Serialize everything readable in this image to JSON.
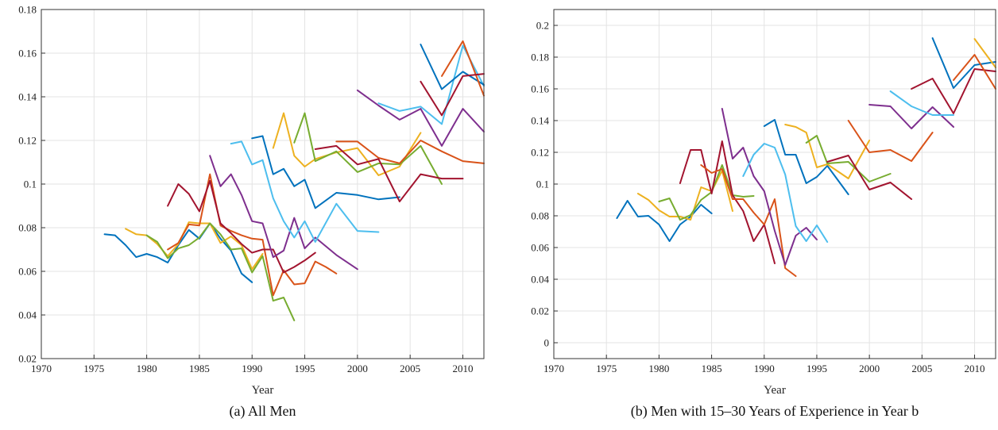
{
  "palette": [
    "#0072BD",
    "#D95319",
    "#EDB120",
    "#7E2F8E",
    "#77AC30",
    "#4DBEEE",
    "#A2142F"
  ],
  "chart_data": [
    {
      "type": "line",
      "caption": "(a) All Men",
      "xlabel": "Year",
      "ylabel": "",
      "xlim": [
        1970,
        2012
      ],
      "ylim": [
        0.02,
        0.18
      ],
      "xticks": [
        1970,
        1975,
        1980,
        1985,
        1990,
        1995,
        2000,
        2005,
        2010
      ],
      "yticks": [
        0.02,
        0.04,
        0.06,
        0.08,
        0.1,
        0.12,
        0.14,
        0.16,
        0.18
      ],
      "ytick_labels": [
        "0.02",
        "0.04",
        "0.06",
        "0.08",
        "0.1",
        "0.12",
        "0.14",
        "0.16",
        "0.18"
      ],
      "grid": true,
      "series": [
        {
          "color": "#0072BD",
          "x": [
            1976,
            1977,
            1978,
            1979,
            1980,
            1981,
            1982,
            1983,
            1984,
            1985,
            1986,
            1987,
            1988,
            1989,
            1990
          ],
          "y": [
            0.077,
            0.0765,
            0.072,
            0.0665,
            0.068,
            0.0665,
            0.064,
            0.072,
            0.079,
            0.075,
            0.082,
            0.075,
            0.0695,
            0.059,
            0.055
          ]
        },
        {
          "color": "#EDB120",
          "x": [
            1978,
            1979,
            1980,
            1981,
            1982,
            1983,
            1984,
            1985,
            1986,
            1987,
            1988,
            1989,
            1990,
            1991
          ],
          "y": [
            0.0795,
            0.077,
            0.0765,
            0.0725,
            0.067,
            0.0725,
            0.0825,
            0.082,
            0.082,
            0.073,
            0.076,
            0.072,
            0.061,
            0.068
          ]
        },
        {
          "color": "#77AC30",
          "x": [
            1980,
            1981,
            1982,
            1983,
            1984,
            1985,
            1986,
            1987,
            1988,
            1989,
            1990,
            1991,
            1992,
            1993,
            1994
          ],
          "y": [
            0.0765,
            0.0735,
            0.066,
            0.0705,
            0.072,
            0.0755,
            0.082,
            0.077,
            0.07,
            0.0705,
            0.0595,
            0.067,
            0.0465,
            0.048,
            0.0375
          ]
        },
        {
          "color": "#D95319",
          "x": [
            1982,
            1983,
            1984,
            1985,
            1986,
            1987,
            1988,
            1989,
            1990,
            1991,
            1992,
            1993,
            1994,
            1995,
            1996,
            1997,
            1998
          ],
          "y": [
            0.07,
            0.073,
            0.0815,
            0.081,
            0.1045,
            0.081,
            0.0785,
            0.0765,
            0.075,
            0.0745,
            0.049,
            0.0605,
            0.054,
            0.0545,
            0.0645,
            0.062,
            0.059
          ]
        },
        {
          "color": "#A2142F",
          "x": [
            1982,
            1983,
            1984,
            1985,
            1986,
            1987,
            1988,
            1989,
            1990,
            1991,
            1992,
            1993,
            1994,
            1995,
            1996
          ],
          "y": [
            0.09,
            0.1,
            0.0955,
            0.0875,
            0.1015,
            0.082,
            0.0775,
            0.0725,
            0.0685,
            0.07,
            0.07,
            0.0595,
            0.062,
            0.065,
            0.0685
          ]
        },
        {
          "color": "#7E2F8E",
          "x": [
            1986,
            1987,
            1988,
            1989,
            1990,
            1991,
            1992,
            1993,
            1994,
            1995,
            1996,
            1998,
            2000
          ],
          "y": [
            0.113,
            0.099,
            0.1045,
            0.095,
            0.083,
            0.082,
            0.0665,
            0.0695,
            0.0845,
            0.0705,
            0.0755,
            0.0675,
            0.061
          ]
        },
        {
          "color": "#4DBEEE",
          "x": [
            1988,
            1989,
            1990,
            1991,
            1992,
            1993,
            1994,
            1995,
            1996,
            1998,
            2000,
            2002
          ],
          "y": [
            0.1185,
            0.1195,
            0.109,
            0.111,
            0.0935,
            0.083,
            0.0755,
            0.083,
            0.0735,
            0.091,
            0.0785,
            0.078
          ]
        },
        {
          "color": "#0072BD",
          "x": [
            1990,
            1991,
            1992,
            1993,
            1994,
            1995,
            1996,
            1998,
            2000,
            2002,
            2004
          ],
          "y": [
            0.121,
            0.122,
            0.1045,
            0.107,
            0.099,
            0.102,
            0.089,
            0.096,
            0.095,
            0.093,
            0.094
          ]
        },
        {
          "color": "#EDB120",
          "x": [
            1992,
            1993,
            1994,
            1995,
            1996,
            1998,
            2000,
            2002,
            2004,
            2006
          ],
          "y": [
            0.1165,
            0.1325,
            0.113,
            0.108,
            0.1115,
            0.1145,
            0.1165,
            0.104,
            0.108,
            0.1235
          ]
        },
        {
          "color": "#77AC30",
          "x": [
            1994,
            1995,
            1996,
            1998,
            2000,
            2002,
            2004,
            2006,
            2008
          ],
          "y": [
            0.119,
            0.1325,
            0.1105,
            0.115,
            0.1055,
            0.1095,
            0.109,
            0.1175,
            0.1
          ]
        },
        {
          "color": "#D95319",
          "x": [
            1998,
            2000,
            2002,
            2004,
            2006,
            2008,
            2010,
            2012
          ],
          "y": [
            0.1195,
            0.1195,
            0.112,
            0.1095,
            0.12,
            0.115,
            0.1105,
            0.1095
          ]
        },
        {
          "color": "#A2142F",
          "x": [
            1996,
            1998,
            2000,
            2002,
            2004,
            2006,
            2008,
            2010
          ],
          "y": [
            0.116,
            0.1175,
            0.109,
            0.1115,
            0.092,
            0.1045,
            0.1025,
            0.1025
          ]
        },
        {
          "color": "#7E2F8E",
          "x": [
            2000,
            2002,
            2004,
            2006,
            2008,
            2010,
            2012
          ],
          "y": [
            0.143,
            0.136,
            0.1295,
            0.1345,
            0.1175,
            0.1345,
            0.124
          ]
        },
        {
          "color": "#4DBEEE",
          "x": [
            2002,
            2004,
            2006,
            2008,
            2010,
            2012
          ],
          "y": [
            0.137,
            0.1335,
            0.1355,
            0.1275,
            0.1635,
            0.145
          ]
        },
        {
          "color": "#0072BD",
          "x": [
            2006,
            2008,
            2010,
            2012
          ],
          "y": [
            0.164,
            0.1435,
            0.1515,
            0.1455
          ]
        },
        {
          "color": "#D95319",
          "x": [
            2008,
            2010,
            2012
          ],
          "y": [
            0.1495,
            0.1655,
            0.1405
          ]
        },
        {
          "color": "#A2142F",
          "x": [
            2006,
            2008,
            2010,
            2012
          ],
          "y": [
            0.147,
            0.1315,
            0.1495,
            0.1505
          ]
        }
      ]
    },
    {
      "type": "line",
      "caption": "(b) Men with 15–30 Years of Experience in Year b",
      "xlabel": "Year",
      "ylabel": "",
      "xlim": [
        1970,
        2012
      ],
      "ylim": [
        -0.01,
        0.21
      ],
      "xticks": [
        1970,
        1975,
        1980,
        1985,
        1990,
        1995,
        2000,
        2005,
        2010
      ],
      "yticks": [
        0,
        0.02,
        0.04,
        0.06,
        0.08,
        0.1,
        0.12,
        0.14,
        0.16,
        0.18,
        0.2
      ],
      "ytick_labels": [
        "0",
        "0.02",
        "0.04",
        "0.06",
        "0.08",
        "0.1",
        "0.12",
        "0.14",
        "0.16",
        "0.18",
        "0.2"
      ],
      "grid": true,
      "series": [
        {
          "color": "#0072BD",
          "x": [
            1976,
            1977,
            1978,
            1979,
            1980,
            1981,
            1982,
            1983,
            1984,
            1985
          ],
          "y": [
            0.0785,
            0.0895,
            0.0795,
            0.08,
            0.0745,
            0.064,
            0.0745,
            0.0795,
            0.087,
            0.0815
          ]
        },
        {
          "color": "#EDB120",
          "x": [
            1978,
            1979,
            1980,
            1981,
            1982,
            1983,
            1984,
            1985,
            1986,
            1987
          ],
          "y": [
            0.094,
            0.09,
            0.0835,
            0.0795,
            0.0795,
            0.0775,
            0.098,
            0.0955,
            0.1085,
            0.083
          ]
        },
        {
          "color": "#77AC30",
          "x": [
            1980,
            1981,
            1982,
            1983,
            1984,
            1985,
            1986,
            1987,
            1988,
            1989
          ],
          "y": [
            0.089,
            0.091,
            0.0775,
            0.0805,
            0.09,
            0.095,
            0.112,
            0.093,
            0.092,
            0.0925
          ]
        },
        {
          "color": "#A2142F",
          "x": [
            1982,
            1983,
            1984,
            1985,
            1986,
            1987,
            1988,
            1989,
            1990,
            1991
          ],
          "y": [
            0.1005,
            0.1215,
            0.1215,
            0.094,
            0.127,
            0.093,
            0.083,
            0.064,
            0.0745,
            0.05
          ]
        },
        {
          "color": "#D95319",
          "x": [
            1984,
            1985,
            1986,
            1987,
            1988,
            1989,
            1990,
            1991,
            1992,
            1993
          ],
          "y": [
            0.112,
            0.107,
            0.1095,
            0.0905,
            0.0905,
            0.082,
            0.0745,
            0.0905,
            0.047,
            0.042
          ]
        },
        {
          "color": "#7E2F8E",
          "x": [
            1986,
            1987,
            1988,
            1989,
            1990,
            1991,
            1992,
            1993,
            1994,
            1995
          ],
          "y": [
            0.1475,
            0.116,
            0.123,
            0.105,
            0.0955,
            0.0705,
            0.049,
            0.0675,
            0.0725,
            0.065
          ]
        },
        {
          "color": "#4DBEEE",
          "x": [
            1988,
            1989,
            1990,
            1991,
            1992,
            1993,
            1994,
            1995,
            1996
          ],
          "y": [
            0.105,
            0.1185,
            0.1255,
            0.123,
            0.106,
            0.0735,
            0.064,
            0.074,
            0.0635
          ]
        },
        {
          "color": "#0072BD",
          "x": [
            1990,
            1991,
            1992,
            1993,
            1994,
            1995,
            1996,
            1998
          ],
          "y": [
            0.1365,
            0.1405,
            0.1185,
            0.1185,
            0.1005,
            0.1045,
            0.1115,
            0.0935
          ]
        },
        {
          "color": "#EDB120",
          "x": [
            1992,
            1993,
            1994,
            1995,
            1996,
            1998,
            2000
          ],
          "y": [
            0.1375,
            0.136,
            0.1325,
            0.1105,
            0.1125,
            0.1035,
            0.1275
          ]
        },
        {
          "color": "#77AC30",
          "x": [
            1994,
            1995,
            1996,
            1998,
            2000,
            2002
          ],
          "y": [
            0.126,
            0.1305,
            0.113,
            0.114,
            0.1015,
            0.1065
          ]
        },
        {
          "color": "#A2142F",
          "x": [
            1996,
            1998,
            2000,
            2002,
            2004
          ],
          "y": [
            0.114,
            0.118,
            0.0965,
            0.101,
            0.0905
          ]
        },
        {
          "color": "#D95319",
          "x": [
            1998,
            2000,
            2002,
            2004,
            2006
          ],
          "y": [
            0.14,
            0.12,
            0.1215,
            0.1145,
            0.1325
          ]
        },
        {
          "color": "#7E2F8E",
          "x": [
            2000,
            2002,
            2004,
            2006,
            2008
          ],
          "y": [
            0.15,
            0.149,
            0.135,
            0.1485,
            0.136
          ]
        },
        {
          "color": "#4DBEEE",
          "x": [
            2002,
            2004,
            2006,
            2008
          ],
          "y": [
            0.1585,
            0.149,
            0.1435,
            0.1435
          ]
        },
        {
          "color": "#A2142F",
          "x": [
            2004,
            2006,
            2008,
            2010,
            2012
          ],
          "y": [
            0.16,
            0.1665,
            0.1445,
            0.1725,
            0.171
          ]
        },
        {
          "color": "#0072BD",
          "x": [
            2006,
            2008,
            2010,
            2012
          ],
          "y": [
            0.192,
            0.1605,
            0.175,
            0.177
          ]
        },
        {
          "color": "#D95319",
          "x": [
            2008,
            2010,
            2012
          ],
          "y": [
            0.1655,
            0.1815,
            0.16
          ]
        },
        {
          "color": "#EDB120",
          "x": [
            2010,
            2012
          ],
          "y": [
            0.1915,
            0.1735
          ]
        }
      ]
    }
  ]
}
